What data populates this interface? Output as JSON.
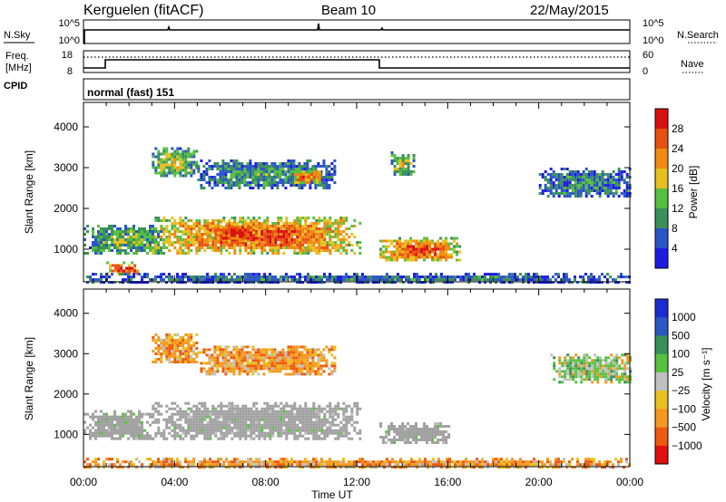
{
  "header": {
    "station": "Kerguelen (fitACF)",
    "beam": "Beam 10",
    "date": "22/May/2015"
  },
  "sky_panel": {
    "label": "N.Sky",
    "left_ticks": [
      "10^5",
      "10^0"
    ],
    "right_ticks": [
      "10^5",
      "10^0"
    ],
    "right_label": "N.Search"
  },
  "freq_panel": {
    "label_line1": "Freq.",
    "label_line2": "[MHz]",
    "left_ticks": [
      "18",
      "8"
    ],
    "right_ticks": [
      "60",
      "0"
    ],
    "right_label": "Nave"
  },
  "cpid_panel": {
    "label": "CPID",
    "mode_text": "normal (fast) 151"
  },
  "x_axis": {
    "tick_labels": [
      "00:00",
      "04:00",
      "08:00",
      "12:00",
      "16:00",
      "20:00",
      "00:00"
    ],
    "label": "Time UT"
  },
  "colors": {
    "power_scale": [
      "#1c1ce0",
      "#2a55c8",
      "#3b8f5a",
      "#55c040",
      "#e6c020",
      "#f08a10",
      "#e85010",
      "#d81010"
    ],
    "velocity_scale": [
      "#e01010",
      "#ee5a10",
      "#f59820",
      "#e8c020",
      "#c0c0c0",
      "#58c040",
      "#3a8f58",
      "#2a58c0",
      "#1c2cd0"
    ],
    "ground_scatter": "#a0a0a0"
  },
  "chart_data": [
    {
      "type": "heatmap",
      "name": "power",
      "ylabel": "Slant Range [km]",
      "y_ticks": [
        "1000",
        "2000",
        "3000",
        "4000"
      ],
      "ylim": [
        200,
        4600
      ],
      "xlim_hours": [
        0,
        24
      ],
      "colorbar_label": "Power [dB]",
      "colorbar_ticks": [
        "4",
        "8",
        "12",
        "16",
        "20",
        "24",
        "28"
      ],
      "scatter_regions": [
        {
          "t": [
            0.0,
            3.5
          ],
          "r": [
            900,
            1600
          ],
          "level": 0.45
        },
        {
          "t": [
            1.0,
            2.5
          ],
          "r": [
            400,
            700
          ],
          "level": 0.95
        },
        {
          "t": [
            3.0,
            12.2
          ],
          "r": [
            900,
            1800
          ],
          "level": 0.85
        },
        {
          "t": [
            5.5,
            8.0
          ],
          "r": [
            1200,
            1700
          ],
          "level": 0.95
        },
        {
          "t": [
            13.0,
            16.5
          ],
          "r": [
            700,
            1300
          ],
          "level": 0.85
        },
        {
          "t": [
            3.0,
            5.0
          ],
          "r": [
            2800,
            3500
          ],
          "level": 0.5
        },
        {
          "t": [
            5.0,
            11.0
          ],
          "r": [
            2500,
            3200
          ],
          "level": 0.35
        },
        {
          "t": [
            9.0,
            10.5
          ],
          "r": [
            2600,
            3000
          ],
          "level": 0.75
        },
        {
          "t": [
            13.5,
            14.5
          ],
          "r": [
            2800,
            3400
          ],
          "level": 0.5
        },
        {
          "t": [
            20.0,
            24.0
          ],
          "r": [
            2300,
            3000
          ],
          "level": 0.3
        },
        {
          "t": [
            0.0,
            24.0
          ],
          "r": [
            200,
            420
          ],
          "level": 0.25
        }
      ]
    },
    {
      "type": "heatmap",
      "name": "velocity",
      "ylabel": "Slant Range [km]",
      "y_ticks": [
        "1000",
        "2000",
        "3000",
        "4000"
      ],
      "ylim": [
        200,
        4600
      ],
      "xlim_hours": [
        0,
        24
      ],
      "colorbar_label": "Velocity [m s⁻¹]",
      "colorbar_ticks": [
        "1000",
        "500",
        "100",
        "25",
        "−25",
        "−100",
        "−500",
        "−1000"
      ],
      "scatter_regions": [
        {
          "t": [
            3.0,
            12.2
          ],
          "r": [
            900,
            1800
          ],
          "kind": "ground"
        },
        {
          "t": [
            0.0,
            3.0
          ],
          "r": [
            900,
            1600
          ],
          "kind": "ground"
        },
        {
          "t": [
            13.0,
            16.0
          ],
          "r": [
            800,
            1300
          ],
          "kind": "ground"
        },
        {
          "t": [
            3.0,
            5.0
          ],
          "r": [
            2800,
            3500
          ],
          "kind": "negative"
        },
        {
          "t": [
            5.0,
            11.0
          ],
          "r": [
            2500,
            3200
          ],
          "kind": "negative"
        },
        {
          "t": [
            20.5,
            24.0
          ],
          "r": [
            2300,
            3000
          ],
          "kind": "mixed"
        },
        {
          "t": [
            0.0,
            24.0
          ],
          "r": [
            200,
            420
          ],
          "kind": "negative"
        }
      ]
    }
  ]
}
